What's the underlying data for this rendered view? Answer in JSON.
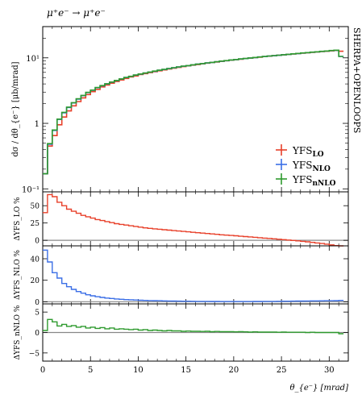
{
  "chart_data": {
    "type": "line",
    "title": "μ⁺e⁻ → μ⁺e⁻",
    "side_label": "SHERPA+OPENLOOPS",
    "xlabel": "θ_{e⁻} [mrad]",
    "xlim": [
      0,
      32
    ],
    "x_ticks": [
      0,
      5,
      10,
      15,
      20,
      25,
      30
    ],
    "x_tick_labels": [
      "0",
      "5",
      "10",
      "15",
      "20",
      "25",
      "30"
    ],
    "bin_edges": [
      0,
      0.5,
      1,
      1.5,
      2,
      2.5,
      3,
      3.5,
      4,
      4.5,
      5,
      5.5,
      6,
      6.5,
      7,
      7.5,
      8,
      8.5,
      9,
      9.5,
      10,
      10.5,
      11,
      11.5,
      12,
      12.5,
      13,
      13.5,
      14,
      14.5,
      15,
      15.5,
      16,
      16.5,
      17,
      17.5,
      18,
      18.5,
      19,
      19.5,
      20,
      20.5,
      21,
      21.5,
      22,
      22.5,
      23,
      23.5,
      24,
      24.5,
      25,
      25.5,
      26,
      26.5,
      27,
      27.5,
      28,
      28.5,
      29,
      29.5,
      30,
      30.5,
      31,
      31.5
    ],
    "colors": {
      "LO": "#e8402a",
      "NLO": "#3b6fe6",
      "nNLO": "#2e9a2e",
      "ref": "#888888"
    },
    "legend": {
      "placement": "lower-right",
      "entries": [
        {
          "key": "LO",
          "text": "YFS",
          "sub": "LO"
        },
        {
          "key": "NLO",
          "text": "YFS",
          "sub": "NLO"
        },
        {
          "key": "nNLO",
          "text": "YFS",
          "sub": "nNLO"
        }
      ]
    },
    "main": {
      "ylabel": "dσ / dθ_{e⁻} [μb/mrad]",
      "yscale": "log",
      "ylim": [
        0.09,
        30
      ],
      "y_ticks": [
        0.1,
        1,
        10
      ],
      "y_tick_labels": [
        "10⁻¹",
        "1",
        "10¹"
      ],
      "series": [
        {
          "key": "LO",
          "values": [
            0.17,
            0.45,
            0.65,
            0.95,
            1.25,
            1.55,
            1.85,
            2.15,
            2.45,
            2.75,
            3.05,
            3.3,
            3.6,
            3.85,
            4.1,
            4.35,
            4.6,
            4.85,
            5.1,
            5.3,
            5.55,
            5.75,
            5.95,
            6.15,
            6.35,
            6.55,
            6.75,
            6.95,
            7.15,
            7.35,
            7.55,
            7.75,
            7.9,
            8.1,
            8.3,
            8.5,
            8.65,
            8.85,
            9.05,
            9.2,
            9.4,
            9.55,
            9.75,
            9.9,
            10.1,
            10.25,
            10.45,
            10.6,
            10.8,
            10.95,
            11.1,
            11.3,
            11.45,
            11.6,
            11.8,
            11.95,
            12.1,
            12.3,
            12.45,
            12.6,
            12.8,
            12.95,
            12.6
          ]
        },
        {
          "key": "NLO",
          "values": [
            0.17,
            0.48,
            0.78,
            1.15,
            1.45,
            1.75,
            2.05,
            2.35,
            2.65,
            2.95,
            3.2,
            3.5,
            3.75,
            4.0,
            4.25,
            4.5,
            4.75,
            5.0,
            5.2,
            5.45,
            5.65,
            5.85,
            6.05,
            6.25,
            6.45,
            6.65,
            6.85,
            7.05,
            7.25,
            7.45,
            7.6,
            7.8,
            8.0,
            8.15,
            8.35,
            8.5,
            8.7,
            8.9,
            9.05,
            9.25,
            9.4,
            9.6,
            9.75,
            9.95,
            10.1,
            10.3,
            10.45,
            10.65,
            10.8,
            10.95,
            11.15,
            11.3,
            11.5,
            11.65,
            11.85,
            12.0,
            12.2,
            12.35,
            12.55,
            12.7,
            12.9,
            13.05,
            10.5
          ]
        },
        {
          "key": "nNLO",
          "values": [
            0.17,
            0.49,
            0.79,
            1.16,
            1.47,
            1.77,
            2.07,
            2.37,
            2.67,
            2.97,
            3.22,
            3.52,
            3.77,
            4.02,
            4.27,
            4.52,
            4.77,
            5.02,
            5.22,
            5.47,
            5.67,
            5.87,
            6.07,
            6.27,
            6.47,
            6.67,
            6.87,
            7.07,
            7.27,
            7.47,
            7.62,
            7.82,
            8.02,
            8.17,
            8.37,
            8.52,
            8.72,
            8.92,
            9.07,
            9.27,
            9.42,
            9.62,
            9.77,
            9.97,
            10.12,
            10.32,
            10.47,
            10.67,
            10.82,
            10.97,
            11.17,
            11.32,
            11.52,
            11.67,
            11.87,
            12.02,
            12.22,
            12.37,
            12.57,
            12.72,
            12.92,
            13.07,
            10.5
          ]
        }
      ]
    },
    "ratios": [
      {
        "key": "LO",
        "ylabel": "ΔYFS_LO %",
        "ylim": [
          -8,
          70
        ],
        "y_ticks": [
          0,
          25,
          50
        ],
        "y_tick_labels": [
          "0",
          "25",
          "50"
        ],
        "values": [
          40,
          66,
          63,
          55,
          50,
          45,
          42,
          39,
          36,
          34,
          32,
          30,
          28.5,
          27,
          25.5,
          24,
          23,
          22,
          21,
          20,
          19,
          18,
          17.3,
          16.6,
          16,
          15.3,
          14.7,
          14,
          13.4,
          12.8,
          12.2,
          11.6,
          11,
          10.4,
          9.8,
          9.2,
          8.6,
          8,
          7.5,
          7,
          6.5,
          5.9,
          5.4,
          4.9,
          4.3,
          3.8,
          3.2,
          2.7,
          2.1,
          1.6,
          1.0,
          0.4,
          -0.2,
          -0.8,
          -1.5,
          -2.2,
          -3,
          -3.8,
          -4.6,
          -5.5,
          -6.6,
          -7.6,
          -8
        ]
      },
      {
        "key": "NLO",
        "ylabel": "ΔYFS_NLO %",
        "ylim": [
          -2,
          52
        ],
        "y_ticks": [
          0,
          20,
          40
        ],
        "y_tick_labels": [
          "0",
          "20",
          "40"
        ],
        "values": [
          48,
          37,
          27,
          22,
          17,
          14,
          11.5,
          9.5,
          8,
          6.5,
          5.5,
          4.7,
          4,
          3.4,
          3,
          2.6,
          2.3,
          2,
          1.8,
          1.6,
          1.4,
          1.2,
          1.1,
          1.0,
          0.9,
          0.8,
          0.7,
          0.6,
          0.55,
          0.5,
          0.45,
          0.4,
          0.35,
          0.3,
          0.3,
          0.25,
          0.25,
          0.2,
          0.2,
          0.2,
          0.2,
          0.2,
          0.2,
          0.2,
          0.25,
          0.25,
          0.3,
          0.3,
          0.35,
          0.4,
          0.45,
          0.5,
          0.55,
          0.6,
          0.65,
          0.7,
          0.75,
          0.8,
          0.85,
          0.9,
          0.95,
          1.0,
          1.2
        ]
      },
      {
        "key": "nNLO",
        "ylabel": "ΔYFS_nNLO %",
        "ylim": [
          -7,
          7
        ],
        "y_ticks": [
          -5,
          0,
          5
        ],
        "y_tick_labels": [
          "−5",
          "0",
          "5"
        ],
        "values": [
          0.5,
          3.2,
          2.6,
          1.6,
          2.0,
          1.5,
          1.7,
          1.3,
          1.5,
          1.1,
          1.3,
          1.0,
          1.2,
          0.9,
          1.1,
          0.8,
          0.9,
          0.8,
          0.7,
          0.8,
          0.6,
          0.7,
          0.5,
          0.6,
          0.5,
          0.4,
          0.5,
          0.4,
          0.4,
          0.3,
          0.35,
          0.3,
          0.3,
          0.25,
          0.3,
          0.2,
          0.25,
          0.2,
          0.2,
          0.2,
          0.15,
          0.2,
          0.15,
          0.1,
          0.15,
          0.1,
          0.1,
          0.1,
          0.1,
          0.05,
          0.1,
          0.05,
          0.05,
          0.05,
          0.05,
          0.0,
          0.05,
          0.0,
          0.0,
          0.0,
          0.0,
          0.0,
          -0.3
        ]
      }
    ]
  }
}
